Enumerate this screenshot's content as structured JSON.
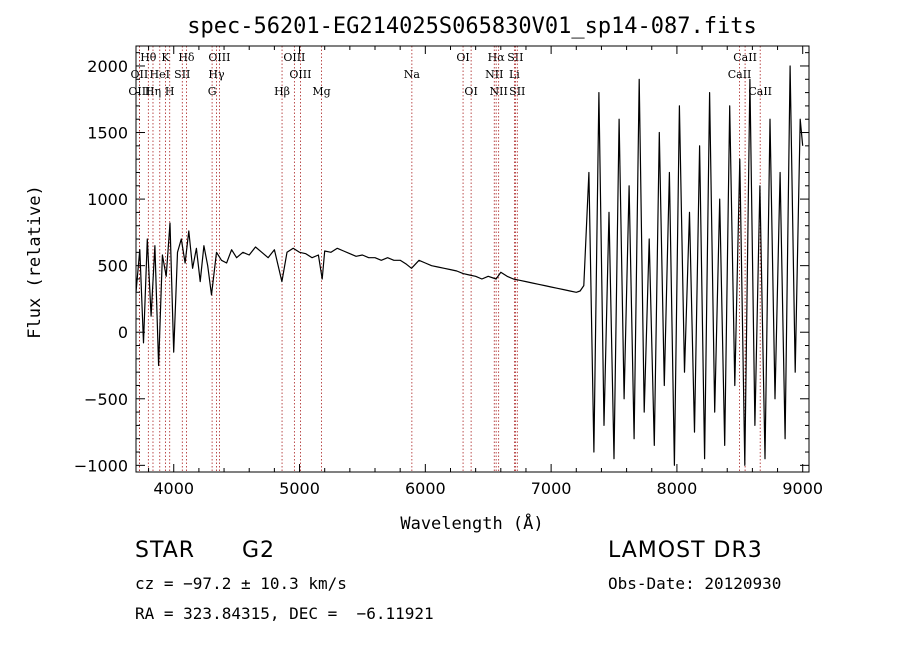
{
  "chart_data": {
    "type": "line",
    "title": "spec-56201-EG214025S065830V01_sp14-087.fits",
    "xlabel": "Wavelength (Å)",
    "ylabel": "Flux (relative)",
    "xlim": [
      3700,
      9050
    ],
    "ylim": [
      -1050,
      2150
    ],
    "xticks": [
      4000,
      5000,
      6000,
      7000,
      8000,
      9000
    ],
    "yticks": [
      -1000,
      -500,
      0,
      500,
      1000,
      1500,
      2000
    ],
    "grid": false,
    "series": [
      {
        "name": "spectrum",
        "x": [
          3700,
          3730,
          3760,
          3790,
          3820,
          3850,
          3880,
          3910,
          3940,
          3970,
          4000,
          4030,
          4060,
          4090,
          4120,
          4150,
          4180,
          4210,
          4240,
          4270,
          4300,
          4340,
          4380,
          4420,
          4460,
          4500,
          4550,
          4600,
          4650,
          4700,
          4750,
          4800,
          4860,
          4900,
          4950,
          5000,
          5050,
          5100,
          5150,
          5180,
          5200,
          5250,
          5300,
          5350,
          5400,
          5450,
          5500,
          5550,
          5600,
          5650,
          5700,
          5750,
          5800,
          5850,
          5890,
          5950,
          6000,
          6050,
          6100,
          6150,
          6200,
          6250,
          6300,
          6350,
          6400,
          6450,
          6500,
          6563,
          6600,
          6650,
          6700,
          6750,
          6800,
          6850,
          6900,
          6950,
          7000,
          7050,
          7100,
          7150,
          7200,
          7230,
          7260,
          7300,
          7340,
          7380,
          7420,
          7460,
          7500,
          7540,
          7580,
          7620,
          7660,
          7700,
          7740,
          7780,
          7820,
          7860,
          7900,
          7940,
          7980,
          8020,
          8060,
          8100,
          8140,
          8180,
          8220,
          8260,
          8300,
          8340,
          8380,
          8420,
          8460,
          8500,
          8540,
          8580,
          8620,
          8660,
          8700,
          8740,
          8780,
          8820,
          8860,
          8900,
          8940,
          8980,
          9000
        ],
        "y": [
          300,
          620,
          -80,
          700,
          120,
          650,
          -250,
          580,
          420,
          820,
          -150,
          600,
          700,
          520,
          760,
          480,
          630,
          380,
          650,
          500,
          280,
          600,
          540,
          520,
          620,
          560,
          600,
          580,
          640,
          600,
          560,
          620,
          380,
          600,
          630,
          600,
          590,
          560,
          580,
          400,
          610,
          600,
          630,
          610,
          590,
          570,
          580,
          560,
          560,
          540,
          560,
          540,
          540,
          510,
          480,
          540,
          520,
          500,
          490,
          480,
          470,
          460,
          440,
          430,
          420,
          400,
          420,
          400,
          450,
          420,
          400,
          390,
          380,
          370,
          360,
          350,
          340,
          330,
          320,
          310,
          300,
          310,
          350,
          1200,
          -900,
          1800,
          -700,
          900,
          -950,
          1600,
          -500,
          1100,
          -800,
          1900,
          -600,
          700,
          -850,
          1500,
          -400,
          1200,
          -1000,
          1700,
          -300,
          900,
          -750,
          1400,
          -950,
          1800,
          -600,
          1000,
          -850,
          1700,
          -400,
          1300,
          -1000,
          1900,
          -700,
          1100,
          -950,
          1600,
          -500,
          1200,
          -800,
          2000,
          -300,
          1600,
          1400
        ],
        "color": "#000000"
      }
    ],
    "lines": [
      {
        "label": "Hθ",
        "x": 3798,
        "row": 1
      },
      {
        "label": "K",
        "x": 3934,
        "row": 1
      },
      {
        "label": "Hδ",
        "x": 4101,
        "row": 1
      },
      {
        "label": "OIII",
        "x": 4363,
        "row": 1
      },
      {
        "label": "OIII",
        "x": 4959,
        "row": 1
      },
      {
        "label": "OI",
        "x": 6300,
        "row": 1
      },
      {
        "label": "Hα",
        "x": 6563,
        "row": 1
      },
      {
        "label": "SII",
        "x": 6716,
        "row": 1
      },
      {
        "label": "CaII",
        "x": 8542,
        "row": 1
      },
      {
        "label": "OII",
        "x": 3727,
        "row": 2
      },
      {
        "label": "HeI",
        "x": 3889,
        "row": 2
      },
      {
        "label": "SII",
        "x": 4068,
        "row": 2
      },
      {
        "label": "Hγ",
        "x": 4340,
        "row": 2
      },
      {
        "label": "OIII",
        "x": 5007,
        "row": 2
      },
      {
        "label": "Na",
        "x": 5893,
        "row": 2
      },
      {
        "label": "NII",
        "x": 6548,
        "row": 2
      },
      {
        "label": "Li",
        "x": 6708,
        "row": 2
      },
      {
        "label": "CaII",
        "x": 8498,
        "row": 2
      },
      {
        "label": "OIII",
        "x": 3727,
        "row": 3
      },
      {
        "label": "Hη",
        "x": 3835,
        "row": 3
      },
      {
        "label": "H",
        "x": 3968,
        "row": 3
      },
      {
        "label": "G",
        "x": 4305,
        "row": 3
      },
      {
        "label": "Hβ",
        "x": 4861,
        "row": 3
      },
      {
        "label": "Mg",
        "x": 5175,
        "row": 3
      },
      {
        "label": "OI",
        "x": 6364,
        "row": 3
      },
      {
        "label": "NII",
        "x": 6583,
        "row": 3
      },
      {
        "label": "SII",
        "x": 6731,
        "row": 3
      },
      {
        "label": "CaII",
        "x": 8662,
        "row": 3
      }
    ]
  },
  "info": {
    "object_class": "STAR",
    "subclass": "G2",
    "survey": "LAMOST DR3",
    "cz": "cz = −97.2 ± 10.3 km/s",
    "obs_date": "Obs-Date: 20120930",
    "coords": "RA = 323.84315, DEC =  −6.11921"
  }
}
